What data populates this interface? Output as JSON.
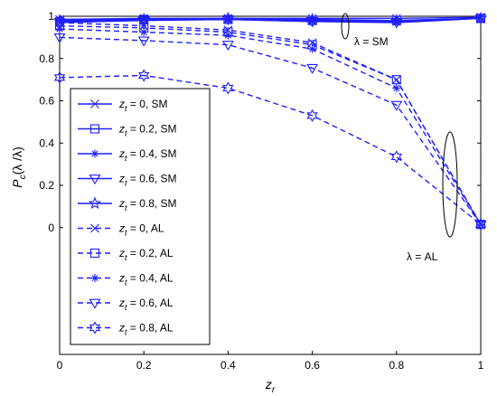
{
  "chart_data": {
    "type": "line",
    "x": [
      0,
      0.2,
      0.4,
      0.6,
      0.8,
      1
    ],
    "xlim": [
      0,
      1
    ],
    "ylim": [
      -0.6,
      1
    ],
    "xticks": [
      "0",
      "0.2",
      "0.4",
      "0.6",
      "0.8",
      "1"
    ],
    "yticks": [
      {
        "v": 1,
        "label": "1"
      },
      {
        "v": 0.8,
        "label": "0.8"
      },
      {
        "v": 0.6,
        "label": "0.6"
      },
      {
        "v": 0.4,
        "label": "0.4"
      },
      {
        "v": 0.2,
        "label": "0.2"
      },
      {
        "v": 0,
        "label": "0"
      }
    ],
    "xlabel": "z",
    "xlabel_sub": "r",
    "ylabel": "P",
    "ylabel_sub": "c",
    "ylabel_rest": "(λ /λ)",
    "legend_position": "inside-left",
    "color": "#1f1fff",
    "series": [
      {
        "name": "0, SM",
        "style": "solid",
        "marker": "x",
        "values": [
          0.985,
          0.99,
          0.99,
          0.99,
          0.99,
          0.995
        ]
      },
      {
        "name": "0.2, SM",
        "style": "solid",
        "marker": "square",
        "values": [
          0.975,
          0.985,
          0.985,
          0.98,
          0.98,
          0.99
        ]
      },
      {
        "name": "0.4, SM",
        "style": "solid",
        "marker": "asterisk",
        "values": [
          0.98,
          0.985,
          0.985,
          0.975,
          0.975,
          0.99
        ]
      },
      {
        "name": "0.6, SM",
        "style": "solid",
        "marker": "triangle-down",
        "values": [
          0.97,
          0.98,
          0.985,
          0.975,
          0.97,
          0.99
        ]
      },
      {
        "name": "0.8, SM",
        "style": "solid",
        "marker": "pentagram",
        "values": [
          0.98,
          0.985,
          0.99,
          0.985,
          0.98,
          0.99
        ]
      },
      {
        "name": "0, AL",
        "style": "dashed",
        "marker": "x",
        "values": [
          0.97,
          0.955,
          0.935,
          0.875,
          0.7,
          0.015
        ]
      },
      {
        "name": "0.2, AL",
        "style": "dashed",
        "marker": "square",
        "values": [
          0.955,
          0.945,
          0.925,
          0.865,
          0.7,
          0.015
        ]
      },
      {
        "name": "0.4, AL",
        "style": "dashed",
        "marker": "asterisk",
        "values": [
          0.94,
          0.925,
          0.91,
          0.845,
          0.66,
          0.015
        ]
      },
      {
        "name": "0.6, AL",
        "style": "dashed",
        "marker": "triangle-down",
        "values": [
          0.9,
          0.885,
          0.865,
          0.755,
          0.58,
          0.015
        ]
      },
      {
        "name": "0.8, AL",
        "style": "dashed",
        "marker": "hexagram",
        "values": [
          0.71,
          0.72,
          0.66,
          0.53,
          0.335,
          0.015
        ]
      }
    ],
    "legend_prefix": "z",
    "legend_prefix_sub": "t",
    "annotations": [
      {
        "text": "λ = SM"
      },
      {
        "text": "λ = AL"
      }
    ]
  }
}
